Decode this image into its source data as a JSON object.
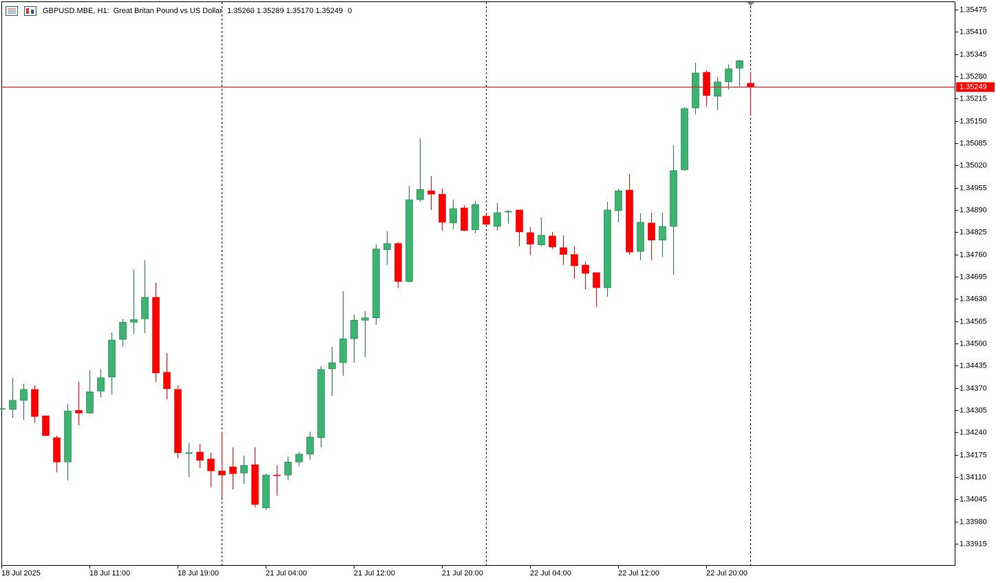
{
  "chart_data": {
    "type": "candlestick",
    "symbol": "GBPUSD.MBE, H1:",
    "description": "Great Britan Pound vs US Dollar",
    "ohlc_text": "1.35260 1.35289 1.35170 1.35249",
    "spread": 0,
    "up_color": "#3cb371",
    "down_color": "#ff0000",
    "categories": [
      "18 Jul 2025",
      null,
      null,
      null,
      null,
      null,
      null,
      null,
      "18 Jul 11:00",
      null,
      null,
      null,
      null,
      null,
      null,
      null,
      "18 Jul 19:00",
      null,
      null,
      null,
      null,
      null,
      null,
      null,
      "21 Jul 04:00",
      null,
      null,
      null,
      null,
      null,
      null,
      null,
      "21 Jul 12:00",
      null,
      null,
      null,
      null,
      null,
      null,
      null,
      "21 Jul 20:00",
      null,
      null,
      null,
      null,
      null,
      null,
      null,
      "22 Jul 04:00",
      null,
      null,
      null,
      null,
      null,
      null,
      null,
      "22 Jul 12:00",
      null,
      null,
      null,
      null,
      null,
      null,
      null,
      "22 Jul 20:00",
      null,
      null,
      null,
      null
    ],
    "open": [
      1.3431,
      1.34308,
      1.34334,
      1.34366,
      1.34289,
      1.34225,
      1.34154,
      1.34305,
      1.34297,
      1.34361,
      1.34402,
      1.34512,
      1.34562,
      1.34572,
      1.34635,
      1.34416,
      1.34366,
      1.34179,
      1.34183,
      1.34163,
      1.34128,
      1.3414,
      1.34122,
      1.34146,
      1.3402,
      1.34116,
      1.34116,
      1.34154,
      1.34177,
      1.34225,
      1.34426,
      1.34444,
      1.34514,
      1.34568,
      1.34575,
      1.34774,
      1.34792,
      1.34681,
      1.3492,
      1.34946,
      1.34936,
      1.34852,
      1.34896,
      1.34832,
      1.34872,
      1.34842,
      1.34884,
      1.3489,
      1.34824,
      1.34788,
      1.34814,
      1.3478,
      1.3476,
      1.34729,
      1.34707,
      1.34663,
      1.34888,
      1.34948,
      1.34769,
      1.34852,
      1.34802,
      1.34842,
      1.35007,
      1.35188,
      1.35292,
      1.35222,
      1.35264,
      1.35304,
      1.3526
    ],
    "high": [
      1.34312,
      1.34399,
      1.34382,
      1.34378,
      1.3429,
      1.34231,
      1.34323,
      1.34388,
      1.34422,
      1.34426,
      1.34532,
      1.34572,
      1.34717,
      1.34743,
      1.34677,
      1.34472,
      1.34378,
      1.34209,
      1.34207,
      1.34181,
      1.34243,
      1.34197,
      1.34173,
      1.34197,
      1.3412,
      1.34144,
      1.3417,
      1.34183,
      1.34243,
      1.34434,
      1.3449,
      1.34653,
      1.34584,
      1.34595,
      1.3479,
      1.34828,
      1.34796,
      1.3496,
      1.35099,
      1.34989,
      1.34952,
      1.3492,
      1.34904,
      1.34916,
      1.34876,
      1.3491,
      1.3489,
      1.3489,
      1.3484,
      1.34868,
      1.34826,
      1.34816,
      1.34784,
      1.34739,
      1.34707,
      1.34914,
      1.34952,
      1.34995,
      1.3488,
      1.34882,
      1.34882,
      1.35079,
      1.3519,
      1.3532,
      1.35298,
      1.35278,
      1.35314,
      1.35328,
      1.35289
    ],
    "low": [
      1.34305,
      1.34283,
      1.34277,
      1.34269,
      1.3423,
      1.34124,
      1.341,
      1.34261,
      1.34295,
      1.34343,
      1.34351,
      1.34492,
      1.34528,
      1.3453,
      1.34388,
      1.34337,
      1.34165,
      1.3411,
      1.34136,
      1.3408,
      1.3405,
      1.34074,
      1.3409,
      1.34022,
      1.34014,
      1.34056,
      1.34102,
      1.34142,
      1.34161,
      1.34197,
      1.34347,
      1.34406,
      1.34444,
      1.3446,
      1.34555,
      1.34729,
      1.34663,
      1.34679,
      1.34914,
      1.3489,
      1.3483,
      1.34834,
      1.34828,
      1.34822,
      1.34844,
      1.3483,
      1.3485,
      1.34784,
      1.34758,
      1.34784,
      1.34776,
      1.34729,
      1.34689,
      1.34659,
      1.34607,
      1.34637,
      1.34854,
      1.34759,
      1.34743,
      1.34743,
      1.34753,
      1.34701,
      1.35005,
      1.3517,
      1.35192,
      1.35182,
      1.35242,
      1.3525,
      1.3517
    ],
    "close": [
      1.3431,
      1.34334,
      1.34366,
      1.34287,
      1.34231,
      1.34154,
      1.34303,
      1.34297,
      1.34359,
      1.344,
      1.3451,
      1.34562,
      1.3457,
      1.34635,
      1.34414,
      1.34368,
      1.34181,
      1.34181,
      1.34159,
      1.34128,
      1.34116,
      1.3412,
      1.34144,
      1.3403,
      1.34116,
      1.34114,
      1.34154,
      1.34177,
      1.34227,
      1.34424,
      1.34444,
      1.34514,
      1.34568,
      1.34575,
      1.34776,
      1.34792,
      1.34681,
      1.3492,
      1.3495,
      1.34936,
      1.34854,
      1.34894,
      1.3483,
      1.34906,
      1.34848,
      1.34882,
      1.34886,
      1.34826,
      1.3479,
      1.34816,
      1.34782,
      1.3476,
      1.34727,
      1.34705,
      1.34663,
      1.3489,
      1.34946,
      1.34767,
      1.34854,
      1.34802,
      1.34842,
      1.35005,
      1.35186,
      1.3529,
      1.35224,
      1.35264,
      1.35302,
      1.35326,
      1.35249
    ],
    "last_price": {
      "value": 1.35249,
      "label": "1.35249"
    },
    "last_price_color": "#ff0000",
    "ylim": [
      1.33851,
      1.35499
    ],
    "yticks": [
      1.35475,
      {
        "value": 1.3541,
        "label": "1.35410"
      },
      1.35345,
      {
        "value": 1.3528,
        "label": "1.35280"
      },
      1.35215,
      {
        "value": 1.3515,
        "label": "1.35150"
      },
      1.35085,
      {
        "value": 1.3502,
        "label": "1.35020"
      },
      1.34955,
      {
        "value": 1.3489,
        "label": "1.34890"
      },
      1.34825,
      {
        "value": 1.3476,
        "label": "1.34760"
      },
      1.34695,
      {
        "value": 1.3463,
        "label": "1.34630"
      },
      1.34565,
      {
        "value": 1.345,
        "label": "1.34500"
      },
      1.34435,
      {
        "value": 1.3437,
        "label": "1.34370"
      },
      1.34305,
      {
        "value": 1.3424,
        "label": "1.34240"
      },
      1.34175,
      {
        "value": 1.3411,
        "label": "1.34110"
      },
      1.34045,
      {
        "value": 1.3398,
        "label": "1.33980"
      },
      1.33915
    ],
    "grid": false
  }
}
